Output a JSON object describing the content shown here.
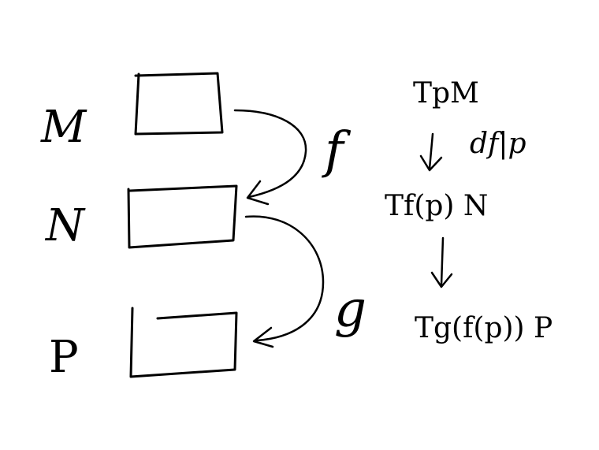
{
  "diagram": {
    "ink_color": "#000000",
    "background_color": "#ffffff",
    "manifolds": [
      {
        "id": "M",
        "label": "M"
      },
      {
        "id": "N",
        "label": "N"
      },
      {
        "id": "P",
        "label": "P"
      }
    ],
    "maps": [
      {
        "id": "f",
        "label": "f",
        "from": "M",
        "to": "N"
      },
      {
        "id": "g",
        "label": "g",
        "from": "N",
        "to": "P"
      }
    ],
    "tangent_chain": {
      "spaces": [
        {
          "id": "tp-m",
          "text": "TpM"
        },
        {
          "id": "tfp-n",
          "text": "Tf(p) N"
        },
        {
          "id": "tgfp-p",
          "text": "Tg(f(p)) P"
        }
      ],
      "differentials": [
        {
          "id": "df",
          "text": "df|p"
        },
        {
          "id": "dg",
          "text": ""
        }
      ]
    }
  }
}
